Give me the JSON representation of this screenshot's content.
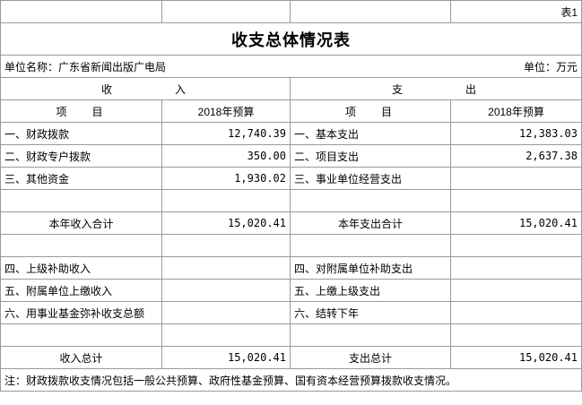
{
  "corner_label": "表1",
  "title": "收支总体情况表",
  "unit_name": "单位名称：广东省新闻出版广电局",
  "unit": "单位：万元",
  "headers": {
    "income": "收入",
    "expense": "支出",
    "item_income": "项目",
    "budget_income": "2018年预算",
    "item_expense": "项目",
    "budget_expense": "2018年预算"
  },
  "rows": [
    [
      "一、财政拨款",
      "12,740.39",
      "一、基本支出",
      "12,383.03"
    ],
    [
      "二、财政专户拨款",
      "350.00",
      "二、项目支出",
      "2,637.38"
    ],
    [
      "三、其他资金",
      "1,930.02",
      "三、事业单位经营支出",
      null
    ],
    [
      null,
      null,
      null,
      null
    ],
    [
      "本年收入合计",
      "15,020.41",
      "本年支出合计",
      "15,020.41"
    ],
    [
      null,
      null,
      null,
      null
    ],
    [
      "四、上级补助收入",
      null,
      "四、对附属单位补助支出",
      null
    ],
    [
      "五、附属单位上缴收入",
      null,
      "五、上缴上级支出",
      null
    ],
    [
      "六、用事业基金弥补收支总额",
      null,
      "六、结转下年",
      null
    ],
    [
      null,
      null,
      null,
      null
    ],
    [
      "收入总计",
      "15,020.41",
      "支出总计",
      "15,020.41"
    ]
  ],
  "note": "注：财政拨款收支情况包括一般公共预算、政府性基金预算、国有资本经营预算拨款收支情况。"
}
